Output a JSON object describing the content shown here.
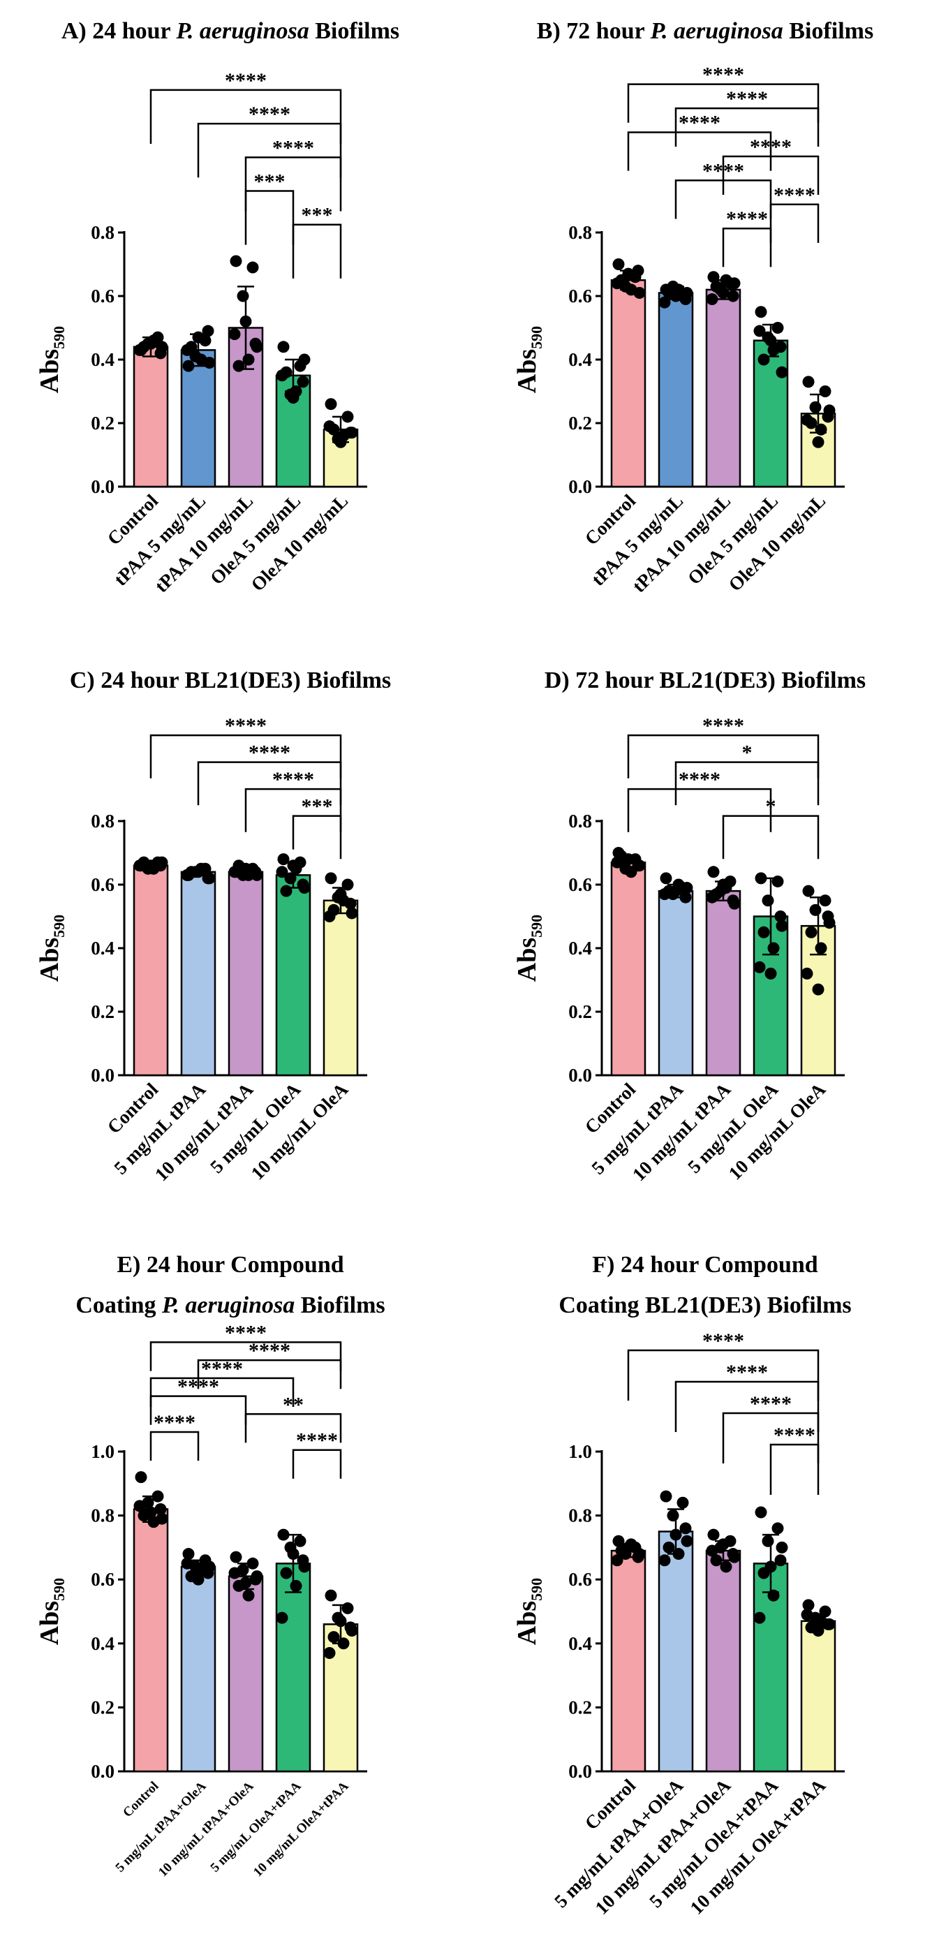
{
  "figure": {
    "series_colors": [
      "#F4A3A8",
      "#6196CF",
      "#C697C8",
      "#2DB878",
      "#F8F6B4"
    ],
    "series_colors_light": [
      "#F4A3A8",
      "#A9C6E8",
      "#C697C8",
      "#2DB878",
      "#F8F6B4"
    ]
  },
  "chart_data": [
    {
      "type": "bar",
      "title_prefix": "A)",
      "title": "24 hour ",
      "title_italic": "P. aeruginosa",
      "title_suffix": " Biofilms",
      "ylabel": "Abs",
      "ylabel_sub": "590",
      "ylim": [
        0,
        0.8
      ],
      "yticks": [
        "0.0",
        "0.2",
        "0.4",
        "0.6",
        "0.8"
      ],
      "categories": [
        "Control",
        "tPAA 5 mg/mL",
        "tPAA 10 mg/mL",
        "OleA 5 mg/mL",
        "OleA 10 mg/mL"
      ],
      "values": [
        0.44,
        0.43,
        0.5,
        0.35,
        0.18
      ],
      "errors": [
        0.03,
        0.05,
        0.13,
        0.05,
        0.04
      ],
      "points": [
        [
          0.43,
          0.47,
          0.45,
          0.42,
          0.44,
          0.46,
          0.43,
          0.45,
          0.44
        ],
        [
          0.38,
          0.46,
          0.41,
          0.49,
          0.44,
          0.4,
          0.43,
          0.47,
          0.39
        ],
        [
          0.71,
          0.69,
          0.6,
          0.45,
          0.38,
          0.4,
          0.48,
          0.52,
          0.44
        ],
        [
          0.44,
          0.38,
          0.29,
          0.33,
          0.36,
          0.3,
          0.35,
          0.28,
          0.4
        ],
        [
          0.26,
          0.22,
          0.15,
          0.17,
          0.18,
          0.16,
          0.19,
          0.14,
          0.17
        ]
      ],
      "comparisons": [
        {
          "from": 0,
          "to": 4,
          "label": "****"
        },
        {
          "from": 1,
          "to": 4,
          "label": "****"
        },
        {
          "from": 2,
          "to": 4,
          "label": "****"
        },
        {
          "from": 2,
          "to": 3,
          "label": "***"
        },
        {
          "from": 3,
          "to": 4,
          "label": "***"
        }
      ],
      "color_set": "strong"
    },
    {
      "type": "bar",
      "title_prefix": "B)",
      "title": "72 hour ",
      "title_italic": "P. aeruginosa",
      "title_suffix": " Biofilms",
      "ylabel": "Abs",
      "ylabel_sub": "590",
      "ylim": [
        0,
        0.8
      ],
      "yticks": [
        "0.0",
        "0.2",
        "0.4",
        "0.6",
        "0.8"
      ],
      "categories": [
        "Control",
        "tPAA 5 mg/mL",
        "tPAA 10 mg/mL",
        "OleA 5 mg/mL",
        "OleA 10 mg/mL"
      ],
      "values": [
        0.65,
        0.61,
        0.62,
        0.46,
        0.23
      ],
      "errors": [
        0.03,
        0.02,
        0.03,
        0.05,
        0.06
      ],
      "points": [
        [
          0.7,
          0.66,
          0.63,
          0.68,
          0.65,
          0.62,
          0.64,
          0.67,
          0.61
        ],
        [
          0.62,
          0.6,
          0.63,
          0.59,
          0.61,
          0.62,
          0.58,
          0.6,
          0.61
        ],
        [
          0.66,
          0.64,
          0.62,
          0.6,
          0.63,
          0.65,
          0.59,
          0.61,
          0.64
        ],
        [
          0.55,
          0.5,
          0.47,
          0.44,
          0.4,
          0.43,
          0.49,
          0.46,
          0.36
        ],
        [
          0.33,
          0.3,
          0.25,
          0.22,
          0.2,
          0.18,
          0.21,
          0.14,
          0.24
        ]
      ],
      "comparisons": [
        {
          "from": 0,
          "to": 4,
          "label": "****"
        },
        {
          "from": 1,
          "to": 4,
          "label": "****"
        },
        {
          "from": 0,
          "to": 3,
          "label": "****"
        },
        {
          "from": 2,
          "to": 4,
          "label": "****"
        },
        {
          "from": 1,
          "to": 3,
          "label": "****"
        },
        {
          "from": 3,
          "to": 4,
          "label": "****"
        },
        {
          "from": 2,
          "to": 3,
          "label": "****"
        }
      ],
      "color_set": "strong"
    },
    {
      "type": "bar",
      "title_prefix": "C)",
      "title": "24 hour BL21(DE3) Biofilms",
      "title_italic": "",
      "title_suffix": "",
      "ylabel": "Abs",
      "ylabel_sub": "590",
      "ylim": [
        0,
        0.8
      ],
      "yticks": [
        "0.0",
        "0.2",
        "0.4",
        "0.6",
        "0.8"
      ],
      "categories": [
        "Control",
        "5 mg/mL tPAA",
        "10 mg/mL tPAA",
        "5 mg/mL OleA",
        "10 mg/mL OleA"
      ],
      "values": [
        0.66,
        0.64,
        0.64,
        0.63,
        0.55
      ],
      "errors": [
        0.01,
        0.01,
        0.01,
        0.04,
        0.04
      ],
      "points": [
        [
          0.66,
          0.67,
          0.65,
          0.66,
          0.67,
          0.65,
          0.66,
          0.66,
          0.67
        ],
        [
          0.63,
          0.65,
          0.64,
          0.62,
          0.64,
          0.65,
          0.63,
          0.64,
          0.62
        ],
        [
          0.64,
          0.65,
          0.63,
          0.64,
          0.66,
          0.63,
          0.64,
          0.65,
          0.63
        ],
        [
          0.68,
          0.67,
          0.62,
          0.6,
          0.58,
          0.65,
          0.64,
          0.66,
          0.59
        ],
        [
          0.62,
          0.6,
          0.56,
          0.54,
          0.52,
          0.55,
          0.5,
          0.57,
          0.51
        ]
      ],
      "comparisons": [
        {
          "from": 0,
          "to": 4,
          "label": "****"
        },
        {
          "from": 1,
          "to": 4,
          "label": "****"
        },
        {
          "from": 2,
          "to": 4,
          "label": "****"
        },
        {
          "from": 3,
          "to": 4,
          "label": "***"
        }
      ],
      "color_set": "light"
    },
    {
      "type": "bar",
      "title_prefix": "D)",
      "title": "72 hour BL21(DE3) Biofilms",
      "title_italic": "",
      "title_suffix": "",
      "ylabel": "Abs",
      "ylabel_sub": "590",
      "ylim": [
        0,
        0.8
      ],
      "yticks": [
        "0.0",
        "0.2",
        "0.4",
        "0.6",
        "0.8"
      ],
      "categories": [
        "Control",
        "5 mg/mL tPAA",
        "10 mg/mL tPAA",
        "5 mg/mL OleA",
        "10 mg/mL OleA"
      ],
      "values": [
        0.67,
        0.58,
        0.58,
        0.5,
        0.47
      ],
      "errors": [
        0.02,
        0.02,
        0.03,
        0.12,
        0.09
      ],
      "points": [
        [
          0.7,
          0.68,
          0.65,
          0.66,
          0.69,
          0.64,
          0.67,
          0.68,
          0.66
        ],
        [
          0.62,
          0.59,
          0.57,
          0.56,
          0.58,
          0.6,
          0.57,
          0.58,
          0.59
        ],
        [
          0.64,
          0.61,
          0.58,
          0.55,
          0.57,
          0.59,
          0.56,
          0.6,
          0.54
        ],
        [
          0.62,
          0.61,
          0.55,
          0.5,
          0.45,
          0.4,
          0.34,
          0.32,
          0.47
        ],
        [
          0.58,
          0.55,
          0.52,
          0.5,
          0.45,
          0.4,
          0.32,
          0.27,
          0.48
        ]
      ],
      "comparisons": [
        {
          "from": 0,
          "to": 4,
          "label": "****"
        },
        {
          "from": 1,
          "to": 4,
          "label": "*"
        },
        {
          "from": 0,
          "to": 3,
          "label": "****"
        },
        {
          "from": 2,
          "to": 4,
          "label": "*"
        }
      ],
      "color_set": "light"
    },
    {
      "type": "bar",
      "title_prefix": "E)",
      "title": "24 hour Compound",
      "title_line2": "Coating ",
      "title_italic": "P. aeruginosa",
      "title_suffix": " Biofilms",
      "ylabel": "Abs",
      "ylabel_sub": "590",
      "ylim": [
        0,
        1.0
      ],
      "yticks": [
        "0.0",
        "0.2",
        "0.4",
        "0.6",
        "0.8",
        "1.0"
      ],
      "categories": [
        "Control",
        "5 mg/mL tPAA+OleA",
        "10 mg/mL tPAA+OleA",
        "5 mg/mL OleA+tPAA",
        "10 mg/mL OleA+tPAA"
      ],
      "values": [
        0.82,
        0.64,
        0.61,
        0.65,
        0.46
      ],
      "errors": [
        0.04,
        0.02,
        0.04,
        0.09,
        0.06
      ],
      "points": [
        [
          0.92,
          0.86,
          0.84,
          0.82,
          0.8,
          0.78,
          0.83,
          0.81,
          0.79
        ],
        [
          0.68,
          0.66,
          0.64,
          0.62,
          0.61,
          0.63,
          0.65,
          0.6,
          0.64
        ],
        [
          0.67,
          0.65,
          0.63,
          0.6,
          0.58,
          0.55,
          0.62,
          0.59,
          0.61
        ],
        [
          0.74,
          0.72,
          0.7,
          0.66,
          0.62,
          0.58,
          0.48,
          0.68,
          0.64
        ],
        [
          0.55,
          0.51,
          0.48,
          0.45,
          0.42,
          0.4,
          0.37,
          0.47,
          0.44
        ]
      ],
      "comparisons": [
        {
          "from": 0,
          "to": 4,
          "label": "****"
        },
        {
          "from": 1,
          "to": 4,
          "label": "****"
        },
        {
          "from": 0,
          "to": 3,
          "label": "****"
        },
        {
          "from": 0,
          "to": 2,
          "label": "****"
        },
        {
          "from": 2,
          "to": 4,
          "label": "**"
        },
        {
          "from": 0,
          "to": 1,
          "label": "****"
        },
        {
          "from": 3,
          "to": 4,
          "label": "****"
        }
      ],
      "color_set": "light",
      "small_labels": true
    },
    {
      "type": "bar",
      "title_prefix": "F)",
      "title": "24 hour Compound",
      "title_line2": "Coating BL21(DE3) Biofilms",
      "title_italic": "",
      "title_suffix": "",
      "ylabel": "Abs",
      "ylabel_sub": "590",
      "ylim": [
        0,
        1.0
      ],
      "yticks": [
        "0.0",
        "0.2",
        "0.4",
        "0.6",
        "0.8",
        "1.0"
      ],
      "categories": [
        "Control",
        "5 mg/mL tPAA+OleA",
        "10 mg/mL tPAA+OleA",
        "5 mg/mL OleA+tPAA",
        "10 mg/mL OleA+tPAA"
      ],
      "values": [
        0.69,
        0.75,
        0.69,
        0.65,
        0.47
      ],
      "errors": [
        0.02,
        0.07,
        0.03,
        0.09,
        0.02
      ],
      "points": [
        [
          0.72,
          0.7,
          0.68,
          0.67,
          0.69,
          0.71,
          0.66,
          0.7,
          0.68
        ],
        [
          0.86,
          0.84,
          0.8,
          0.76,
          0.7,
          0.68,
          0.66,
          0.74,
          0.72
        ],
        [
          0.74,
          0.72,
          0.7,
          0.68,
          0.66,
          0.64,
          0.69,
          0.71,
          0.67
        ],
        [
          0.81,
          0.76,
          0.72,
          0.66,
          0.62,
          0.55,
          0.48,
          0.64,
          0.7
        ],
        [
          0.52,
          0.5,
          0.48,
          0.46,
          0.45,
          0.47,
          0.49,
          0.44,
          0.46
        ]
      ],
      "comparisons": [
        {
          "from": 0,
          "to": 4,
          "label": "****"
        },
        {
          "from": 1,
          "to": 4,
          "label": "****"
        },
        {
          "from": 2,
          "to": 4,
          "label": "****"
        },
        {
          "from": 3,
          "to": 4,
          "label": "****"
        }
      ],
      "color_set": "light"
    }
  ]
}
